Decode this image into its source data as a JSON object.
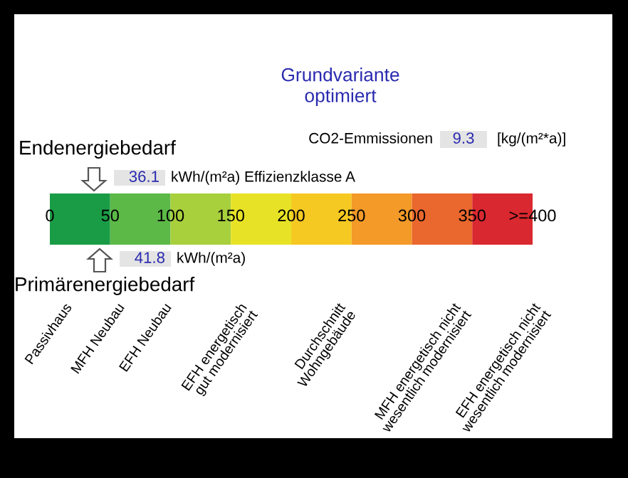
{
  "chart_data": {
    "type": "bar",
    "orientation": "horizontal",
    "stacked": true,
    "title": "Grundvariante\noptimiert",
    "categories": [
      null
    ],
    "series": [
      {
        "color": "#1a9c46",
        "values": [
          50
        ]
      },
      {
        "color": "#5cb947",
        "values": [
          50
        ]
      },
      {
        "color": "#a8d03c",
        "values": [
          50
        ]
      },
      {
        "color": "#e8e226",
        "values": [
          50
        ]
      },
      {
        "color": "#f6c922",
        "values": [
          50
        ]
      },
      {
        "color": "#f39a28",
        "values": [
          50
        ]
      },
      {
        "color": "#ea672d",
        "values": [
          50
        ]
      },
      {
        "color": "#d9282f",
        "values": [
          50
        ]
      }
    ],
    "xlim": [
      0,
      400
    ],
    "xticks": [
      0,
      50,
      100,
      150,
      200,
      250,
      300,
      350,
      {
        "value": 400,
        "label": ">=400"
      }
    ],
    "annotations": [
      "CO2-Emmissionen",
      "9.3",
      "[kg/(m²*a)]",
      "Endenergiebedarf",
      "Primärenergiebedarf",
      "36.1",
      "kWh/(m²a) Effizienzklasse A",
      "41.8",
      "kWh/(m²a)",
      "Passivhaus",
      "MFH Neubau",
      "EFH Neubau",
      "EFH energetisch\ngut modernisiert",
      "Durchschnitt\nWohngebäude",
      "MFH energetisch nicht\nwesentlich modernisiert",
      "EFH energetisch nicht\nwesentlich modernisiert"
    ]
  }
}
